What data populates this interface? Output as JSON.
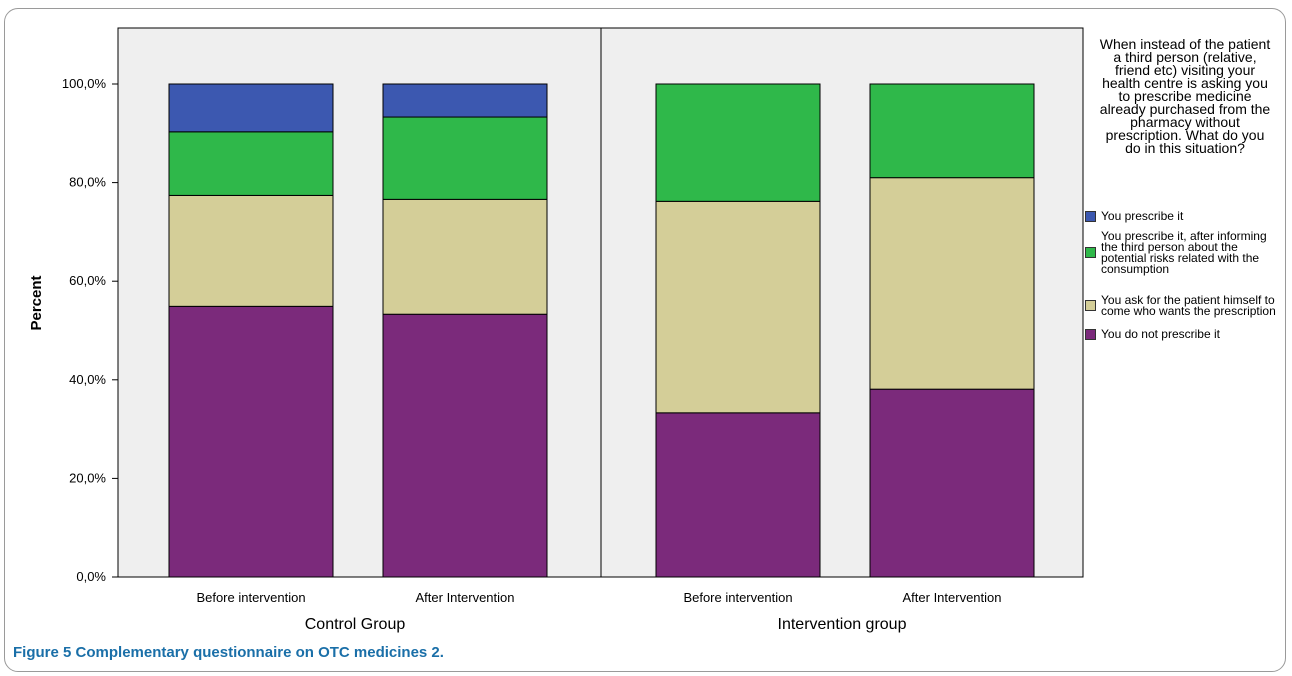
{
  "caption": {
    "label": "Figure 5",
    "text": "Complementary questionnaire on OTC medicines 2."
  },
  "chart_data": {
    "type": "bar",
    "stacked": true,
    "ylabel": "Percent",
    "ylim": [
      0,
      100
    ],
    "yticks": [
      "0,0%",
      "20,0%",
      "40,0%",
      "60,0%",
      "80,0%",
      "100,0%"
    ],
    "grid": false,
    "legend_position": "right",
    "legend_title": "When instead of the patient a third person (relative, friend etc) visiting your health centre is asking you to prescribe medicine already purchased from the pharmacy without prescription. What do you do in this situation?",
    "panels": [
      {
        "group": "Control Group",
        "categories": [
          "Before intervention",
          "After Intervention"
        ],
        "series": [
          {
            "name": "You do not prescribe it",
            "color": "#7b2a7b",
            "values": [
              54.9,
              53.3
            ]
          },
          {
            "name": "You ask for the patient himself to come who wants the prescription",
            "color": "#d4ce98",
            "values": [
              22.5,
              23.3
            ]
          },
          {
            "name": "You prescribe it, after informing the third person about the potential risks related with the consumption",
            "color": "#2fb84a",
            "values": [
              12.9,
              16.7
            ]
          },
          {
            "name": "You prescribe it",
            "color": "#3c58b0",
            "values": [
              9.7,
              6.7
            ]
          }
        ]
      },
      {
        "group": "Intervention group",
        "categories": [
          "Before intervention",
          "After Intervention"
        ],
        "series": [
          {
            "name": "You do not prescribe it",
            "color": "#7b2a7b",
            "values": [
              33.3,
              38.1
            ]
          },
          {
            "name": "You ask for the patient himself to come who wants the prescription",
            "color": "#d4ce98",
            "values": [
              42.9,
              42.9
            ]
          },
          {
            "name": "You prescribe it, after informing the third person about the potential risks related with the consumption",
            "color": "#2fb84a",
            "values": [
              23.8,
              19.0
            ]
          },
          {
            "name": "You prescribe it",
            "color": "#3c58b0",
            "values": [
              0,
              0
            ]
          }
        ]
      }
    ],
    "legend": [
      {
        "label": "You prescribe it",
        "color": "#3c58b0"
      },
      {
        "label": "You prescribe it, after informing the third person about the potential risks related with the consumption",
        "color": "#2fb84a"
      },
      {
        "label": "You ask for the patient himself to come who wants the prescription",
        "color": "#d4ce98"
      },
      {
        "label": "You do not prescribe it",
        "color": "#7b2a7b"
      }
    ],
    "colors": {
      "plot_background": "#efefef",
      "outline": "#000000"
    }
  }
}
